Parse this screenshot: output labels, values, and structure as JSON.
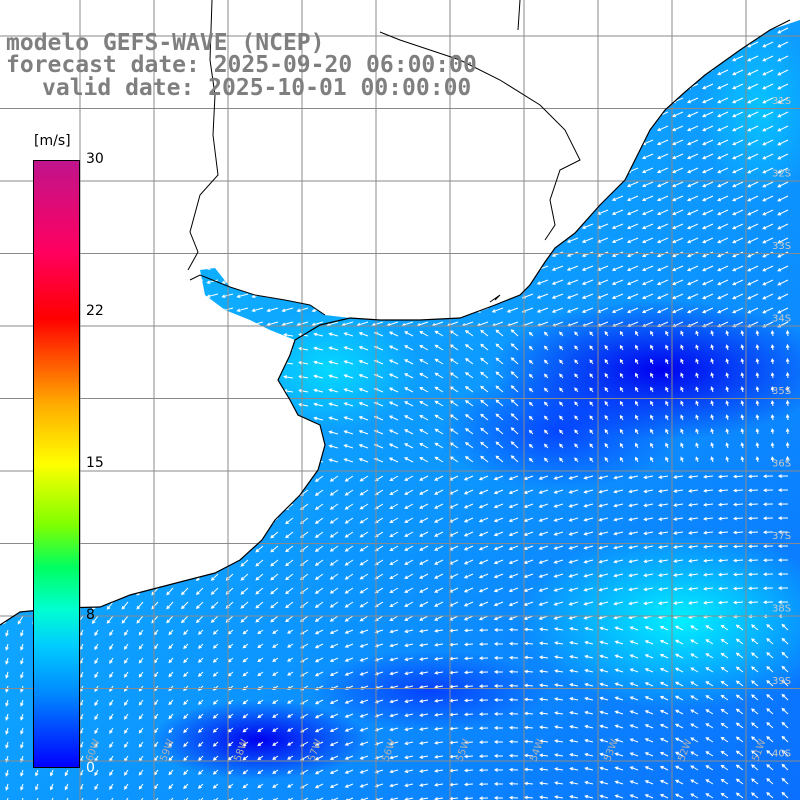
{
  "title": {
    "line1": "modelo GEFS-WAVE (NCEP)",
    "line2": "forecast date: 2025-09-20 06:00:00",
    "line3": "valid date: 2025-10-01 00:00:00"
  },
  "colorbar": {
    "unit": "[m/s]",
    "ticks": [
      "30",
      "22",
      "15",
      "8"
    ],
    "min_visible": "0"
  },
  "longitude_labels": [
    "60W",
    "59W",
    "58W",
    "57W",
    "56W",
    "55W",
    "54W",
    "53W",
    "52W",
    "51W"
  ],
  "latitude_labels": [
    "31S",
    "32S",
    "33S",
    "34S",
    "35S",
    "36S",
    "37S",
    "38S",
    "39S",
    "40S"
  ],
  "map_content": {
    "region": "South Atlantic off Uruguay / Río de la Plata",
    "field": "wind speed with direction arrows",
    "colors": {
      "land": "#ffffff",
      "low_speed": "#0000ff",
      "mid_speed": "#00aaff",
      "high_speed": "#00eeff",
      "arrows": "#ffffff",
      "coast": "#000000",
      "grid": "#808080"
    }
  }
}
